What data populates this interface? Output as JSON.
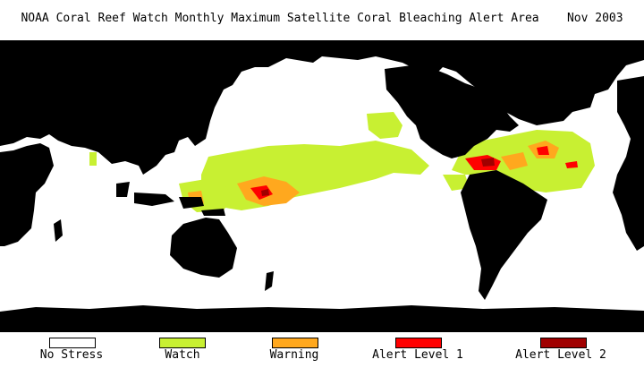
{
  "header": {
    "title": "NOAA Coral Reef Watch Monthly Maximum Satellite Coral Bleaching Alert Area",
    "date": "Nov 2003"
  },
  "legend": {
    "items": [
      {
        "label": "No Stress",
        "color": "#ffffff"
      },
      {
        "label": "Watch",
        "color": "#c8f032"
      },
      {
        "label": "Warning",
        "color": "#ffa81e"
      },
      {
        "label": "Alert Level 1",
        "color": "#ff0000"
      },
      {
        "label": "Alert Level 2",
        "color": "#a00000"
      }
    ]
  },
  "colors": {
    "land": "#000000",
    "ocean": "#ffffff",
    "ice": "#000000"
  }
}
